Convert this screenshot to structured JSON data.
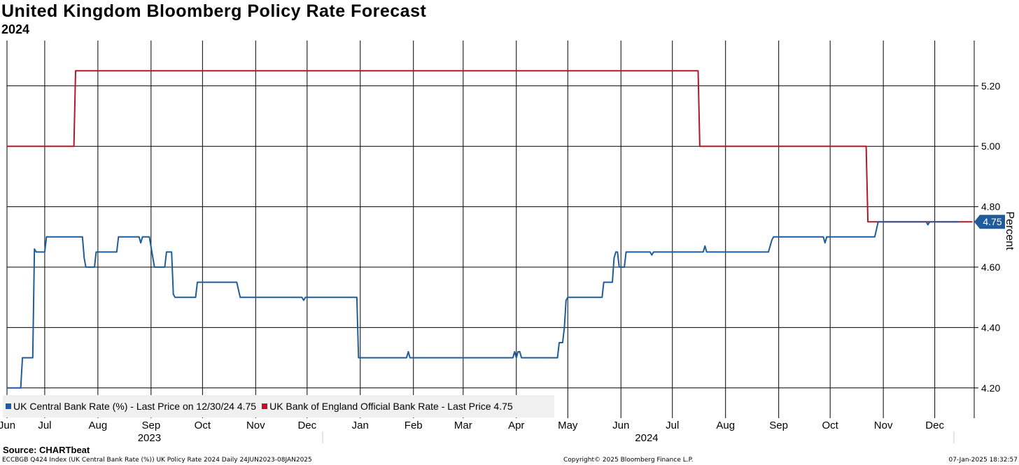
{
  "header": {
    "title": "United Kingdom Bloomberg Policy Rate Forecast",
    "subtitle": "2024"
  },
  "legend": {
    "item1": "UK Central Bank Rate (%) - Last Price on 12/30/24 4.75",
    "item2": "UK Bank of England Official Bank Rate - Last Price 4.75"
  },
  "footer": {
    "source": "Source: CHARTbeat",
    "left": "ECCBGB Q424 Index (UK Central Bank Rate (%)) UK Policy Rate 2024  Daily 24JUN2023-08JAN2025",
    "middle": "Copyright© 2025 Bloomberg Finance L.P.",
    "right": "07-Jan-2025 18:32:57"
  },
  "colors": {
    "series1": "#1f5c99",
    "series2": "#b2182b",
    "grid": "#000000",
    "legend_bg": "#f0f0f0"
  },
  "chart_data": {
    "type": "line",
    "title": "United Kingdom Bloomberg Policy Rate Forecast",
    "subtitle": "2024",
    "ylabel": "Percent",
    "ylim": [
      4.1,
      5.35
    ],
    "yticks": [
      4.2,
      4.4,
      4.6,
      4.8,
      5.0,
      5.2
    ],
    "ytick_labels": [
      "4.20",
      "4.40",
      "4.60",
      "4.80",
      "5.00",
      "5.20"
    ],
    "xlim": [
      "2023-06-24",
      "2025-01-08"
    ],
    "month_ticks": [
      {
        "label": "Jun",
        "date": "2023-06-24"
      },
      {
        "label": "Jul",
        "date": "2023-07-16"
      },
      {
        "label": "Aug",
        "date": "2023-08-16"
      },
      {
        "label": "Sep",
        "date": "2023-09-16"
      },
      {
        "label": "Oct",
        "date": "2023-10-16"
      },
      {
        "label": "Nov",
        "date": "2023-11-16"
      },
      {
        "label": "Dec",
        "date": "2023-12-16"
      },
      {
        "label": "Jan",
        "date": "2024-01-16"
      },
      {
        "label": "Feb",
        "date": "2024-02-16"
      },
      {
        "label": "Mar",
        "date": "2024-03-16"
      },
      {
        "label": "Apr",
        "date": "2024-04-16"
      },
      {
        "label": "May",
        "date": "2024-05-16"
      },
      {
        "label": "Jun",
        "date": "2024-06-16"
      },
      {
        "label": "Jul",
        "date": "2024-07-16"
      },
      {
        "label": "Aug",
        "date": "2024-08-16"
      },
      {
        "label": "Sep",
        "date": "2024-09-16"
      },
      {
        "label": "Oct",
        "date": "2024-10-16"
      },
      {
        "label": "Nov",
        "date": "2024-11-16"
      },
      {
        "label": "Dec",
        "date": "2024-12-16"
      }
    ],
    "year_labels": [
      {
        "label": "2023",
        "date": "2023-09-15"
      },
      {
        "label": "2024",
        "date": "2024-07-01"
      }
    ],
    "grid": true,
    "legend_position": "bottom-left",
    "last_value_label": "4.75",
    "series": [
      {
        "name": "UK Central Bank Rate (%) - Last Price on 12/30/24 4.75",
        "color": "#1f5c99",
        "points": [
          [
            "2023-06-24",
            4.2
          ],
          [
            "2023-07-02",
            4.2
          ],
          [
            "2023-07-03",
            4.3
          ],
          [
            "2023-07-09",
            4.3
          ],
          [
            "2023-07-10",
            4.66
          ],
          [
            "2023-07-11",
            4.65
          ],
          [
            "2023-07-16",
            4.65
          ],
          [
            "2023-07-17",
            4.7
          ],
          [
            "2023-08-07",
            4.7
          ],
          [
            "2023-08-08",
            4.63
          ],
          [
            "2023-08-09",
            4.6
          ],
          [
            "2023-08-14",
            4.6
          ],
          [
            "2023-08-15",
            4.65
          ],
          [
            "2023-08-27",
            4.65
          ],
          [
            "2023-08-28",
            4.7
          ],
          [
            "2023-09-09",
            4.7
          ],
          [
            "2023-09-10",
            4.68
          ],
          [
            "2023-09-11",
            4.7
          ],
          [
            "2023-09-15",
            4.7
          ],
          [
            "2023-09-18",
            4.6
          ],
          [
            "2023-09-24",
            4.6
          ],
          [
            "2023-09-25",
            4.65
          ],
          [
            "2023-09-28",
            4.65
          ],
          [
            "2023-09-29",
            4.51
          ],
          [
            "2023-09-30",
            4.5
          ],
          [
            "2023-10-12",
            4.5
          ],
          [
            "2023-10-13",
            4.55
          ],
          [
            "2023-11-05",
            4.55
          ],
          [
            "2023-11-07",
            4.5
          ],
          [
            "2023-12-13",
            4.5
          ],
          [
            "2023-12-14",
            4.49
          ],
          [
            "2023-12-15",
            4.5
          ],
          [
            "2024-01-14",
            4.5
          ],
          [
            "2024-01-15",
            4.3
          ],
          [
            "2024-02-12",
            4.3
          ],
          [
            "2024-02-13",
            4.32
          ],
          [
            "2024-02-14",
            4.3
          ],
          [
            "2024-04-14",
            4.3
          ],
          [
            "2024-04-15",
            4.32
          ],
          [
            "2024-04-16",
            4.3
          ],
          [
            "2024-04-17",
            4.32
          ],
          [
            "2024-04-18",
            4.32
          ],
          [
            "2024-04-19",
            4.3
          ],
          [
            "2024-05-10",
            4.3
          ],
          [
            "2024-05-11",
            4.35
          ],
          [
            "2024-05-13",
            4.35
          ],
          [
            "2024-05-14",
            4.4
          ],
          [
            "2024-05-15",
            4.49
          ],
          [
            "2024-05-16",
            4.5
          ],
          [
            "2024-06-05",
            4.5
          ],
          [
            "2024-06-06",
            4.55
          ],
          [
            "2024-06-11",
            4.55
          ],
          [
            "2024-06-12",
            4.63
          ],
          [
            "2024-06-13",
            4.65
          ],
          [
            "2024-06-14",
            4.65
          ],
          [
            "2024-06-15",
            4.6
          ],
          [
            "2024-06-18",
            4.6
          ],
          [
            "2024-06-19",
            4.65
          ],
          [
            "2024-07-03",
            4.65
          ],
          [
            "2024-07-04",
            4.64
          ],
          [
            "2024-07-05",
            4.65
          ],
          [
            "2024-08-03",
            4.65
          ],
          [
            "2024-08-04",
            4.67
          ],
          [
            "2024-08-05",
            4.65
          ],
          [
            "2024-09-10",
            4.65
          ],
          [
            "2024-09-12",
            4.69
          ],
          [
            "2024-09-13",
            4.7
          ],
          [
            "2024-10-12",
            4.7
          ],
          [
            "2024-10-13",
            4.68
          ],
          [
            "2024-10-14",
            4.7
          ],
          [
            "2024-11-11",
            4.7
          ],
          [
            "2024-11-13",
            4.75
          ],
          [
            "2024-12-11",
            4.75
          ],
          [
            "2024-12-12",
            4.74
          ],
          [
            "2024-12-13",
            4.75
          ],
          [
            "2024-12-30",
            4.75
          ]
        ]
      },
      {
        "name": "UK Bank of England Official Bank Rate - Last Price 4.75",
        "color": "#b2182b",
        "points": [
          [
            "2023-06-24",
            5.0
          ],
          [
            "2023-08-02",
            5.0
          ],
          [
            "2023-08-03",
            5.25
          ],
          [
            "2024-07-31",
            5.25
          ],
          [
            "2024-08-01",
            5.0
          ],
          [
            "2024-11-06",
            5.0
          ],
          [
            "2024-11-07",
            4.75
          ],
          [
            "2025-01-07",
            4.75
          ]
        ]
      }
    ]
  }
}
